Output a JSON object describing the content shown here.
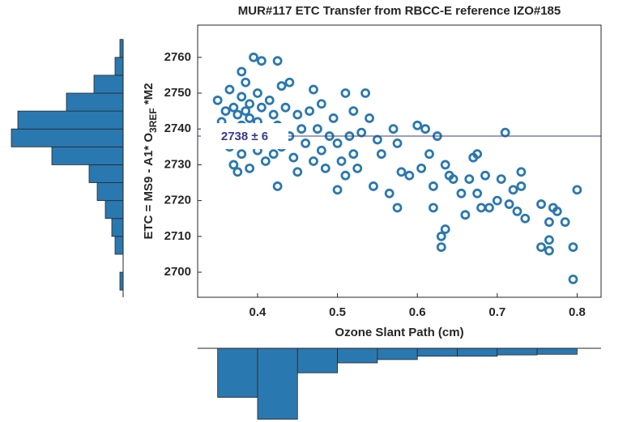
{
  "chart_data": [
    {
      "type": "scatter",
      "title": "MUR#117 ETC Transfer from RBCC-E reference IZO#185",
      "xlabel": "Ozone Slant Path (cm)",
      "ylabel": {
        "text": "ETC = MS9 - A1* O",
        "subscript": "3REF",
        "suffix": " *M2"
      },
      "color": "#2a78b0",
      "reference_line": 2738,
      "reference_color": "#3a3a8c",
      "annotation": "2738 ± 6",
      "xlim": [
        0.325,
        0.83
      ],
      "xticks": [
        0.4,
        0.5,
        0.6,
        0.7,
        0.8
      ],
      "ylim": [
        2693,
        2769
      ],
      "yticks": [
        2700,
        2710,
        2720,
        2730,
        2740,
        2750,
        2760
      ],
      "grid": false,
      "x": [
        0.35,
        0.355,
        0.36,
        0.36,
        0.365,
        0.365,
        0.37,
        0.37,
        0.37,
        0.375,
        0.375,
        0.375,
        0.38,
        0.38,
        0.38,
        0.38,
        0.385,
        0.385,
        0.385,
        0.39,
        0.39,
        0.39,
        0.395,
        0.395,
        0.4,
        0.4,
        0.4,
        0.405,
        0.405,
        0.41,
        0.41,
        0.415,
        0.415,
        0.42,
        0.42,
        0.425,
        0.425,
        0.425,
        0.43,
        0.43,
        0.435,
        0.44,
        0.44,
        0.445,
        0.45,
        0.45,
        0.455,
        0.46,
        0.465,
        0.47,
        0.47,
        0.475,
        0.48,
        0.48,
        0.485,
        0.49,
        0.495,
        0.5,
        0.5,
        0.505,
        0.51,
        0.51,
        0.515,
        0.52,
        0.52,
        0.525,
        0.53,
        0.535,
        0.54,
        0.545,
        0.55,
        0.555,
        0.565,
        0.57,
        0.575,
        0.575,
        0.58,
        0.59,
        0.6,
        0.605,
        0.61,
        0.615,
        0.62,
        0.62,
        0.625,
        0.63,
        0.63,
        0.635,
        0.635,
        0.64,
        0.645,
        0.655,
        0.66,
        0.665,
        0.67,
        0.675,
        0.675,
        0.68,
        0.685,
        0.69,
        0.7,
        0.705,
        0.71,
        0.715,
        0.72,
        0.725,
        0.73,
        0.73,
        0.735,
        0.755,
        0.755,
        0.765,
        0.765,
        0.765,
        0.77,
        0.775,
        0.785,
        0.795,
        0.795,
        0.8
      ],
      "y": [
        2748,
        2742,
        2745,
        2738,
        2751,
        2735,
        2740,
        2746,
        2730,
        2744,
        2737,
        2728,
        2756,
        2749,
        2741,
        2733,
        2753,
        2745,
        2738,
        2747,
        2743,
        2729,
        2760,
        2736,
        2750,
        2742,
        2734,
        2759,
        2746,
        2740,
        2731,
        2748,
        2737,
        2744,
        2733,
        2759,
        2724,
        2741,
        2752,
        2735,
        2746,
        2753,
        2738,
        2732,
        2744,
        2728,
        2740,
        2736,
        2745,
        2751,
        2731,
        2740,
        2747,
        2734,
        2729,
        2738,
        2743,
        2723,
        2736,
        2731,
        2750,
        2727,
        2738,
        2745,
        2733,
        2729,
        2739,
        2750,
        2743,
        2724,
        2737,
        2733,
        2722,
        2740,
        2718,
        2736,
        2728,
        2727,
        2741,
        2729,
        2740,
        2733,
        2724,
        2718,
        2738,
        2710,
        2707,
        2712,
        2730,
        2727,
        2726,
        2722,
        2716,
        2726,
        2732,
        2733,
        2722,
        2718,
        2727,
        2718,
        2720,
        2726,
        2739,
        2719,
        2723,
        2717,
        2728,
        2724,
        2715,
        2719,
        2707,
        2714,
        2709,
        2706,
        2718,
        2717,
        2714,
        2698,
        2707,
        2723
      ]
    },
    {
      "type": "histogram",
      "orientation": "horizontal",
      "color": "#2a78b0",
      "bins": [
        2695,
        2700,
        2705,
        2710,
        2715,
        2720,
        2725,
        2730,
        2735,
        2740,
        2745,
        2750,
        2755,
        2760,
        2765
      ],
      "counts": [
        2,
        0,
        5,
        7,
        11,
        16,
        21,
        44,
        69,
        65,
        35,
        18,
        5,
        2
      ],
      "xlim": [
        0,
        70
      ],
      "ylim": [
        2693,
        2769
      ]
    },
    {
      "type": "histogram",
      "orientation": "vertical",
      "color": "#2a78b0",
      "bins": [
        0.35,
        0.4,
        0.45,
        0.5,
        0.55,
        0.6,
        0.65,
        0.7,
        0.75,
        0.8
      ],
      "counts": [
        74,
        107,
        37,
        22,
        17,
        12,
        12,
        10,
        9
      ],
      "xlim": [
        0.325,
        0.83
      ],
      "ylim": [
        0,
        110
      ]
    }
  ]
}
